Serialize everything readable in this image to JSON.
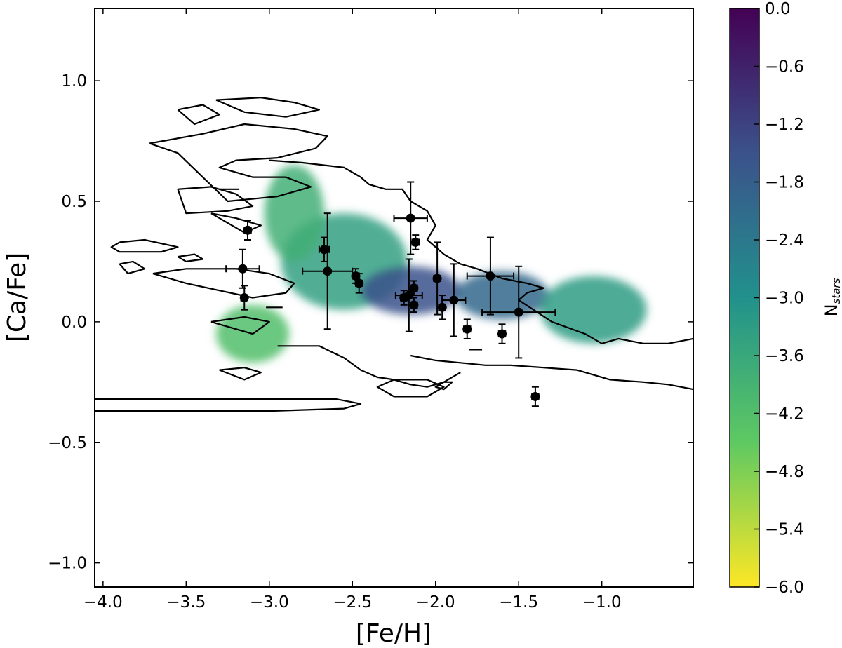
{
  "chart_data": {
    "type": "scatter",
    "title": "",
    "xlabel": "[Fe/H]",
    "ylabel": "[Ca/Fe]",
    "xlim": [
      -4.05,
      -0.45
    ],
    "ylim": [
      -1.1,
      1.3
    ],
    "xticks": [
      -4.0,
      -3.5,
      -3.0,
      -2.5,
      -2.0,
      -1.5,
      -1.0
    ],
    "xtick_labels": [
      "−4.0",
      "−3.5",
      "−3.0",
      "−2.5",
      "−2.0",
      "−1.5",
      "−1.0"
    ],
    "yticks": [
      1.0,
      0.5,
      0.0,
      -0.5,
      -1.0
    ],
    "ytick_labels": [
      "1.0",
      "0.5",
      "0.0",
      "−0.5",
      "−1.0"
    ],
    "grid": false,
    "colorbar": {
      "label_main": "N",
      "label_sub": "stars",
      "range": [
        -6.0,
        0.0
      ],
      "ticks": [
        0.0,
        -0.6,
        -1.2,
        -1.8,
        -2.4,
        -3.0,
        -3.6,
        -4.2,
        -4.8,
        -5.4,
        -6.0
      ],
      "tick_labels": [
        "0.0",
        "−0.6",
        "−1.2",
        "−1.8",
        "−2.4",
        "−3.0",
        "−3.6",
        "−4.2",
        "−4.8",
        "−5.4",
        "−6.0"
      ],
      "colormap": "viridis",
      "colors": [
        "#fde725",
        "#5ec962",
        "#21918c",
        "#3b528b",
        "#440154"
      ]
    },
    "density_map": {
      "description_colormap": "viridis",
      "blobs": [
        {
          "x": -2.55,
          "y": 0.25,
          "sx": 0.38,
          "sy": 0.2,
          "v": -3.4
        },
        {
          "x": -2.15,
          "y": 0.13,
          "sx": 0.3,
          "sy": 0.1,
          "v": -1.5
        },
        {
          "x": -1.6,
          "y": 0.11,
          "sx": 0.28,
          "sy": 0.1,
          "v": -2.0
        },
        {
          "x": -1.05,
          "y": 0.05,
          "sx": 0.32,
          "sy": 0.14,
          "v": -3.3
        },
        {
          "x": -2.85,
          "y": 0.45,
          "sx": 0.18,
          "sy": 0.2,
          "v": -3.8
        },
        {
          "x": -3.1,
          "y": -0.05,
          "sx": 0.22,
          "sy": 0.12,
          "v": -4.2
        }
      ]
    },
    "contours": [
      {
        "x": [
          -3.55,
          -3.4,
          -3.3,
          -3.45,
          -3.55
        ],
        "y": [
          0.88,
          0.9,
          0.86,
          0.82,
          0.88
        ]
      },
      {
        "x": [
          -3.32,
          -3.05,
          -2.85,
          -2.7,
          -2.9,
          -3.15,
          -3.32
        ],
        "y": [
          0.92,
          0.93,
          0.91,
          0.88,
          0.85,
          0.87,
          0.92
        ]
      },
      {
        "x": [
          -3.72,
          -3.4,
          -3.15,
          -2.85,
          -2.65,
          -2.72,
          -2.95,
          -3.2,
          -3.3,
          -3.1,
          -2.9,
          -2.75,
          -2.95,
          -3.25,
          -3.55,
          -3.72
        ],
        "y": [
          0.74,
          0.78,
          0.82,
          0.8,
          0.77,
          0.72,
          0.68,
          0.67,
          0.64,
          0.6,
          0.6,
          0.56,
          0.52,
          0.5,
          0.7,
          0.74
        ]
      },
      {
        "x": [
          -3.55,
          -3.35,
          -3.2,
          -3.1,
          -3.25,
          -3.5,
          -3.55
        ],
        "y": [
          0.55,
          0.56,
          0.53,
          0.48,
          0.46,
          0.45,
          0.55
        ]
      },
      {
        "x": [
          -3.35,
          -3.2,
          -3.05,
          -3.15,
          -3.35
        ],
        "y": [
          0.45,
          0.43,
          0.4,
          0.37,
          0.45
        ]
      },
      {
        "x": [
          -3.9,
          -3.75,
          -3.55,
          -3.65,
          -3.9,
          -3.95,
          -3.9
        ],
        "y": [
          0.33,
          0.34,
          0.31,
          0.29,
          0.29,
          0.31,
          0.33
        ]
      },
      {
        "x": [
          -3.9,
          -3.82,
          -3.75,
          -3.85,
          -3.9
        ],
        "y": [
          0.24,
          0.25,
          0.22,
          0.2,
          0.24
        ]
      },
      {
        "x": [
          -3.55,
          -3.45,
          -3.4,
          -3.5,
          -3.55
        ],
        "y": [
          0.27,
          0.28,
          0.26,
          0.25,
          0.27
        ]
      },
      {
        "x": [
          -3.7,
          -3.5,
          -3.2,
          -3.0,
          -2.85,
          -2.9,
          -3.1,
          -3.3,
          -3.5,
          -3.7
        ],
        "y": [
          0.2,
          0.22,
          0.22,
          0.2,
          0.16,
          0.12,
          0.1,
          0.13,
          0.16,
          0.2
        ]
      },
      {
        "x": [
          -3.35,
          -3.15,
          -3.0,
          -3.1,
          -3.35
        ],
        "y": [
          0.0,
          0.02,
          0.0,
          -0.05,
          0.0
        ]
      },
      {
        "x": [
          -3.3,
          -3.15,
          -3.05,
          -3.15,
          -3.3
        ],
        "y": [
          -0.2,
          -0.19,
          -0.21,
          -0.24,
          -0.2
        ]
      },
      {
        "x": [
          -4.05,
          -3.5,
          -3.0,
          -2.6,
          -2.45,
          -2.55,
          -3.0,
          -3.5,
          -4.05
        ],
        "y": [
          -0.32,
          -0.32,
          -0.32,
          -0.32,
          -0.34,
          -0.36,
          -0.37,
          -0.37,
          -0.37
        ]
      },
      {
        "x": [
          -3.0,
          -2.8,
          -2.55,
          -2.45,
          -2.4,
          -2.3,
          -2.2,
          -2.15,
          -2.05,
          -2.0,
          -2.05,
          -1.95,
          -1.85,
          -1.75,
          -1.6,
          -1.45,
          -1.35,
          -1.45,
          -1.5,
          -1.3,
          -1.1,
          -1.0,
          -0.9,
          -0.75,
          -0.6,
          -0.45
        ],
        "y": [
          0.67,
          0.66,
          0.64,
          0.6,
          0.57,
          0.55,
          0.55,
          0.5,
          0.46,
          0.4,
          0.34,
          0.28,
          0.24,
          0.22,
          0.18,
          0.16,
          0.14,
          0.12,
          0.09,
          0.0,
          -0.05,
          -0.09,
          -0.07,
          -0.09,
          -0.09,
          -0.07
        ]
      },
      {
        "x": [
          -2.95,
          -2.7,
          -2.55,
          -2.45,
          -2.35,
          -2.25,
          -2.15,
          -2.05,
          -1.95,
          -1.85
        ],
        "y": [
          -0.1,
          -0.1,
          -0.15,
          -0.2,
          -0.23,
          -0.24,
          -0.26,
          -0.27,
          -0.25,
          -0.21
        ]
      },
      {
        "x": [
          -2.25,
          -2.05,
          -1.95,
          -2.05,
          -2.25,
          -2.35,
          -2.25
        ],
        "y": [
          -0.24,
          -0.24,
          -0.27,
          -0.31,
          -0.31,
          -0.27,
          -0.24
        ]
      },
      {
        "x": [
          -2.15,
          -2.0,
          -1.85,
          -1.7,
          -1.55,
          -1.35,
          -1.15,
          -0.95,
          -0.75,
          -0.6,
          -0.45
        ],
        "y": [
          -0.14,
          -0.16,
          -0.17,
          -0.18,
          -0.18,
          -0.19,
          -0.2,
          -0.24,
          -0.25,
          -0.26,
          -0.28
        ]
      },
      {
        "x": [
          -1.95,
          -1.9,
          -1.95,
          -2.0,
          -1.95
        ],
        "y": [
          -0.25,
          -0.25,
          -0.28,
          -0.27,
          -0.25
        ]
      },
      {
        "x": [
          -1.8,
          -1.72
        ],
        "y": [
          -0.115,
          -0.115
        ]
      },
      {
        "x": [
          -3.02,
          -2.92
        ],
        "y": [
          0.06,
          0.06
        ]
      },
      {
        "x": [
          -3.3,
          -3.18
        ],
        "y": [
          0.55,
          0.55
        ]
      }
    ],
    "series": [
      {
        "points": [
          {
            "x": -3.13,
            "y": 0.38,
            "xerr": 0.02,
            "yerr": 0.04
          },
          {
            "x": -3.16,
            "y": 0.22,
            "xerr": 0.1,
            "yerr": 0.08
          },
          {
            "x": -3.15,
            "y": 0.1,
            "xerr": 0.02,
            "yerr": 0.05
          },
          {
            "x": -2.67,
            "y": 0.3,
            "xerr": 0.03,
            "yerr": 0.05
          },
          {
            "x": -2.65,
            "y": 0.21,
            "xerr": 0.15,
            "yerr": 0.24
          },
          {
            "x": -2.48,
            "y": 0.19,
            "xerr": 0.02,
            "yerr": 0.03
          },
          {
            "x": -2.46,
            "y": 0.16,
            "xerr": 0.02,
            "yerr": 0.04
          },
          {
            "x": -2.19,
            "y": 0.1,
            "xerr": 0.02,
            "yerr": 0.03
          },
          {
            "x": -2.16,
            "y": 0.11,
            "xerr": 0.08,
            "yerr": 0.15
          },
          {
            "x": -2.15,
            "y": 0.43,
            "xerr": 0.1,
            "yerr": 0.15
          },
          {
            "x": -2.13,
            "y": 0.14,
            "xerr": 0.02,
            "yerr": 0.03
          },
          {
            "x": -2.13,
            "y": 0.07,
            "xerr": 0.02,
            "yerr": 0.03
          },
          {
            "x": -2.12,
            "y": 0.33,
            "xerr": 0.02,
            "yerr": 0.03
          },
          {
            "x": -1.99,
            "y": 0.18,
            "xerr": 0.02,
            "yerr": 0.15
          },
          {
            "x": -1.96,
            "y": 0.06,
            "xerr": 0.02,
            "yerr": 0.05
          },
          {
            "x": -1.89,
            "y": 0.09,
            "xerr": 0.07,
            "yerr": 0.15
          },
          {
            "x": -1.81,
            "y": -0.03,
            "xerr": 0.02,
            "yerr": 0.04
          },
          {
            "x": -1.67,
            "y": 0.19,
            "xerr": 0.14,
            "yerr": 0.16
          },
          {
            "x": -1.6,
            "y": -0.05,
            "xerr": 0.02,
            "yerr": 0.04
          },
          {
            "x": -1.5,
            "y": 0.04,
            "xerr": 0.22,
            "yerr": 0.19
          },
          {
            "x": -1.4,
            "y": -0.31,
            "xerr": 0.02,
            "yerr": 0.04
          }
        ]
      }
    ]
  }
}
